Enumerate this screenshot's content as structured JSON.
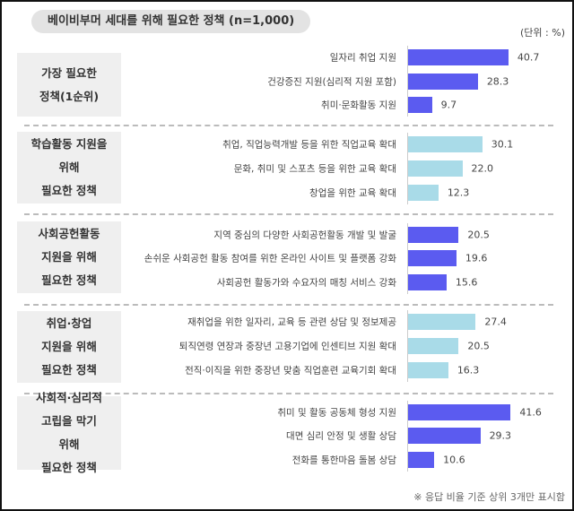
{
  "chart_data": {
    "type": "bar",
    "orientation": "horizontal",
    "title": "베이비부머 세대를 위해 필요한 정책 (n=1,000)",
    "unit_label": "(단위 : %)",
    "footnote": "※ 응답 비율 기준 상위 3개만 표시함",
    "colors": {
      "dark": "#5b5bf0",
      "light": "#a9dbe8"
    },
    "groups": [
      {
        "label": "가장 필요한\n정책(1순위)",
        "color": "dark",
        "categories": [
          "일자리 취업 지원",
          "건강증진 지원(심리적 지원 포함)",
          "취미·문화활동 지원"
        ],
        "values": [
          40.7,
          28.3,
          9.7
        ]
      },
      {
        "label": "학습활동 지원을\n위해\n필요한 정책",
        "color": "light",
        "categories": [
          "취업, 직업능력개발 등을 위한 직업교육 확대",
          "문화, 취미 및 스포츠 등을 위한 교육 확대",
          "창업을 위한 교육 확대"
        ],
        "values": [
          30.1,
          22.0,
          12.3
        ]
      },
      {
        "label": "사회공헌활동\n지원을 위해\n필요한 정책",
        "color": "dark",
        "categories": [
          "지역 중심의 다양한 사회공헌활동 개발 및 발굴",
          "손쉬운 사회공헌 활동 참여를 위한 온라인 사이트 및 플랫폼 강화",
          "사회공헌 활동가와 수요자의 매칭 서비스 강화"
        ],
        "values": [
          20.5,
          19.6,
          15.6
        ]
      },
      {
        "label": "취업·창업\n지원을 위해\n필요한 정책",
        "color": "light",
        "categories": [
          "재취업을 위한 일자리, 교육 등 관련 상담 및 정보제공",
          "퇴직연령 연장과 중장년 고용기업에 인센티브 지원 확대",
          "전직·이직을 위한 중장년 맞춤 직업훈련 교육기회 확대"
        ],
        "values": [
          27.4,
          20.5,
          16.3
        ]
      },
      {
        "label": "사회적·심리적\n고립을 막기\n위해\n필요한 정책",
        "color": "dark",
        "categories": [
          "취미 및 활동 공동체 형성 지원",
          "대면 심리 안정 및 생활 상담",
          "전화를 통한마음 돌봄 상담"
        ],
        "values": [
          41.6,
          29.3,
          10.6
        ]
      }
    ]
  }
}
